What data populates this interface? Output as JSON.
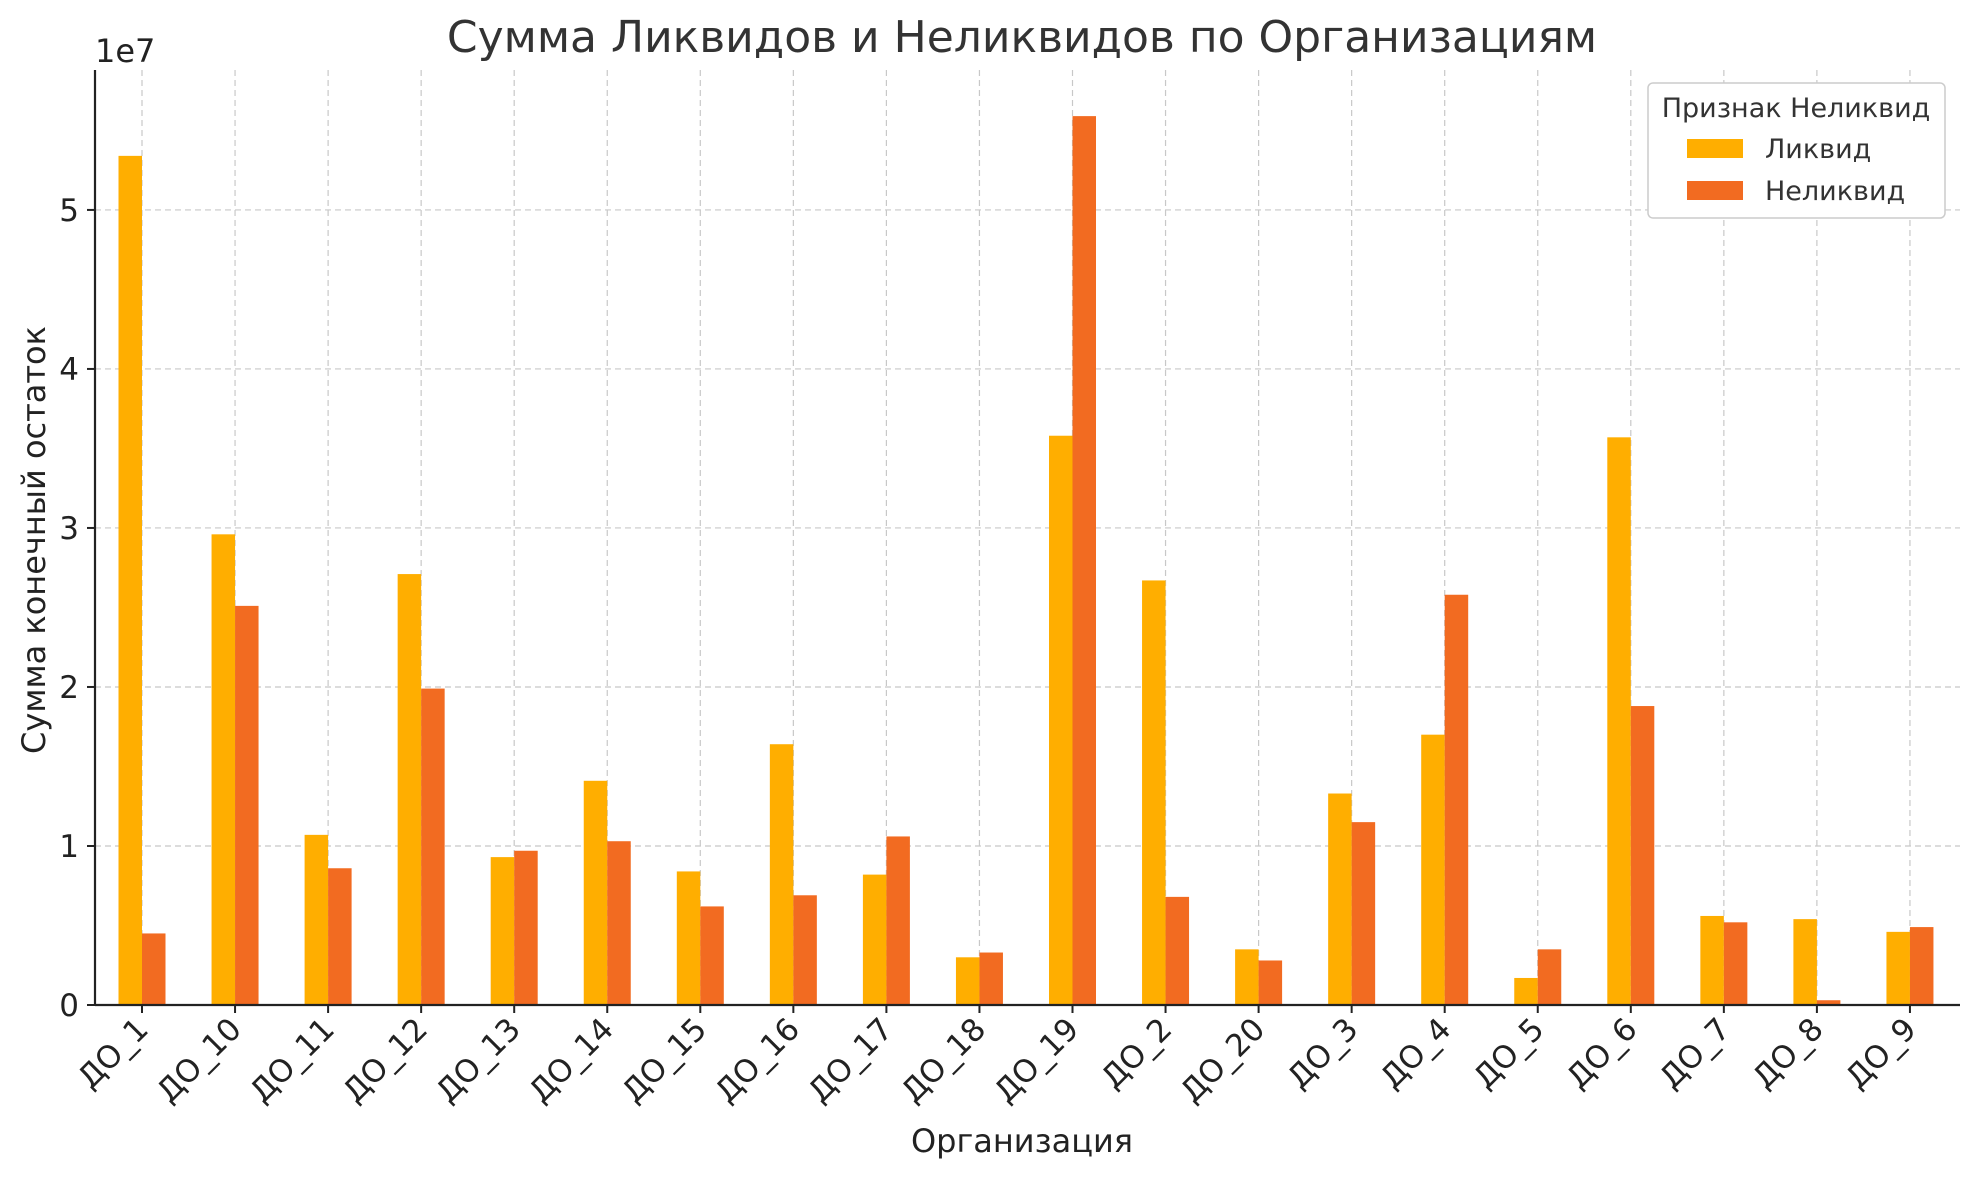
{
  "chart_data": {
    "type": "bar",
    "title": "Сумма Ликвидов и Неликвидов по Организациям",
    "xlabel": "Организация",
    "ylabel": "Сумма конечный остаток",
    "y_offset_label": "1e7",
    "y_scale": 10000000,
    "ylim": [
      0,
      58800000
    ],
    "yticks": [
      0,
      10000000,
      20000000,
      30000000,
      40000000,
      50000000
    ],
    "ytick_labels": [
      "0",
      "1",
      "2",
      "3",
      "4",
      "5"
    ],
    "grid": true,
    "legend": {
      "title": "Признак Неликвид",
      "position": "top-right"
    },
    "categories": [
      "ДО_1",
      "ДО_10",
      "ДО_11",
      "ДО_12",
      "ДО_13",
      "ДО_14",
      "ДО_15",
      "ДО_16",
      "ДО_17",
      "ДО_18",
      "ДО_19",
      "ДО_2",
      "ДО_20",
      "ДО_3",
      "ДО_4",
      "ДО_5",
      "ДО_6",
      "ДО_7",
      "ДО_8",
      "ДО_9"
    ],
    "series": [
      {
        "name": "Ликвид",
        "color": "#FFAE00",
        "values": [
          53400000,
          29600000,
          10700000,
          27100000,
          9300000,
          14100000,
          8400000,
          16400000,
          8200000,
          3000000,
          35800000,
          26700000,
          3500000,
          13300000,
          17000000,
          1700000,
          35700000,
          5600000,
          5400000,
          4600000
        ]
      },
      {
        "name": "Неликвид",
        "color": "#F26B21",
        "values": [
          4500000,
          25100000,
          8600000,
          19900000,
          9700000,
          10300000,
          6200000,
          6900000,
          10600000,
          3300000,
          55900000,
          6800000,
          2800000,
          11500000,
          25800000,
          3500000,
          18800000,
          5200000,
          300000,
          4900000
        ]
      }
    ]
  }
}
